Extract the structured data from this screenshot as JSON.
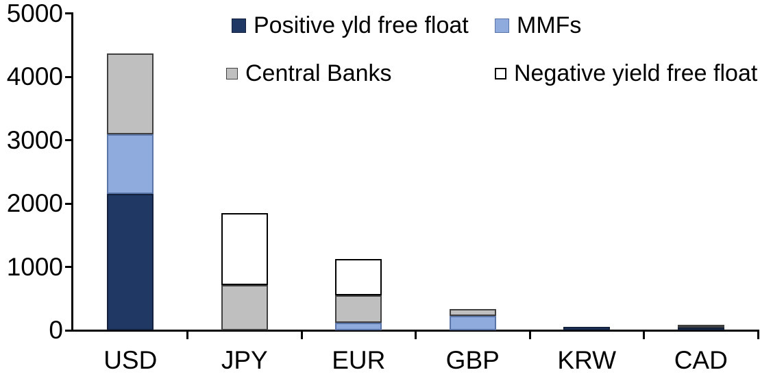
{
  "chart_data": {
    "type": "bar",
    "stacked": true,
    "title": "",
    "xlabel": "",
    "ylabel": "",
    "categories": [
      "USD",
      "JPY",
      "EUR",
      "GBP",
      "KRW",
      "CAD"
    ],
    "series": [
      {
        "name": "Positive yld free float",
        "color": "#1F3864",
        "border_color": "#14213d",
        "values": [
          2150,
          0,
          0,
          0,
          50,
          40
        ]
      },
      {
        "name": "MMFs",
        "color": "#8FAADC",
        "border_color": "#5a74a8",
        "values": [
          940,
          0,
          120,
          225,
          0,
          0
        ]
      },
      {
        "name": "Central Banks",
        "color": "#BFBFBF",
        "border_color": "#404040",
        "values": [
          1280,
          710,
          430,
          115,
          0,
          45
        ]
      },
      {
        "name": "Negative yield free float",
        "color": "#FFFFFF",
        "border_color": "#000000",
        "values": [
          0,
          1140,
          570,
          0,
          0,
          0
        ]
      }
    ],
    "totals": [
      4370,
      1850,
      1120,
      340,
      50,
      85
    ],
    "ylim": [
      0,
      5000
    ],
    "yticks": [
      0,
      1000,
      2000,
      3000,
      4000,
      5000
    ],
    "grid": false,
    "legend_position": "top-inside-two-columns",
    "axis_color": "#000000",
    "background_color": "#FFFFFF"
  }
}
